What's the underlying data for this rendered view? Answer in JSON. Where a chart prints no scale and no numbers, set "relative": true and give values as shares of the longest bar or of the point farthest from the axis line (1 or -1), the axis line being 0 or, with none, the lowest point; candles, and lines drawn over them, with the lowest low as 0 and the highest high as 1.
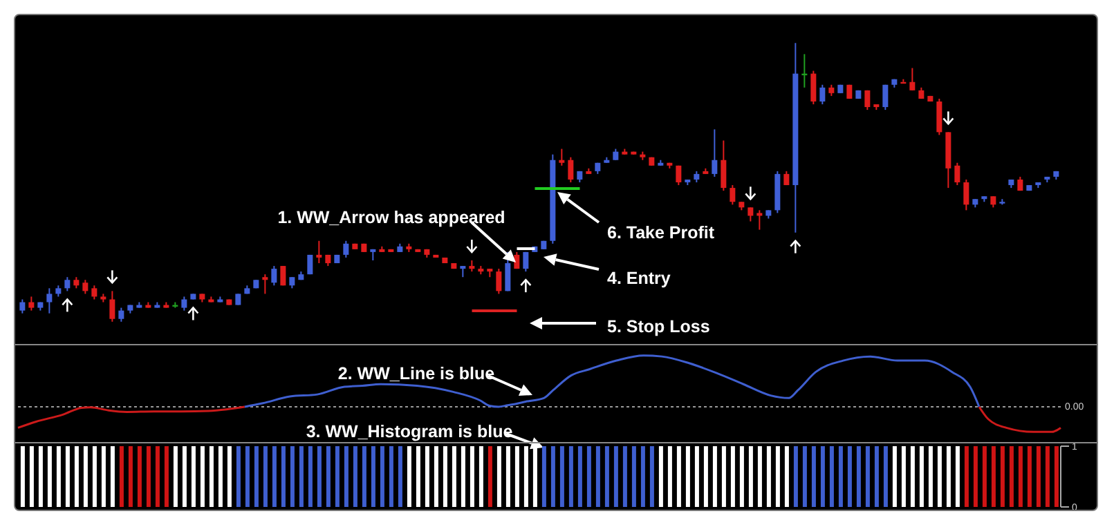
{
  "chart_data": [
    {
      "type": "candlestick",
      "relative": true,
      "categories": [
        null,
        null,
        null,
        null,
        null,
        null,
        null,
        null,
        null,
        null,
        null,
        null,
        null,
        null,
        null,
        null,
        null,
        null,
        null,
        null,
        null,
        null,
        null,
        null,
        null,
        null,
        null,
        null,
        null,
        null,
        null,
        null,
        null,
        null,
        null,
        null,
        null,
        null,
        null,
        null,
        null,
        null,
        null,
        null,
        null,
        null,
        null,
        null,
        null,
        null,
        null,
        null,
        null,
        null,
        null,
        null,
        null,
        null,
        null,
        null,
        null,
        null,
        null,
        null,
        null,
        null,
        null,
        null,
        null,
        null,
        null,
        null,
        null,
        null,
        null,
        null,
        null,
        null,
        null,
        null,
        null,
        null,
        null,
        null,
        null,
        null,
        null,
        null,
        null,
        null,
        null,
        null,
        null,
        null,
        null,
        null,
        null,
        null,
        null,
        null,
        null,
        null,
        null,
        null,
        null,
        null,
        null,
        null,
        null,
        null,
        null,
        null,
        null,
        null,
        null,
        null
      ],
      "ohlc": [
        [
          0.04,
          0.08,
          0.03,
          0.07
        ],
        [
          0.07,
          0.09,
          0.04,
          0.05
        ],
        [
          0.05,
          0.07,
          0.04,
          0.07
        ],
        [
          0.07,
          0.12,
          0.03,
          0.1
        ],
        [
          0.1,
          0.13,
          0.09,
          0.12
        ],
        [
          0.12,
          0.16,
          0.11,
          0.15
        ],
        [
          0.15,
          0.16,
          0.12,
          0.13
        ],
        [
          0.14,
          0.15,
          0.1,
          0.11
        ],
        [
          0.12,
          0.13,
          0.08,
          0.09
        ],
        [
          0.09,
          0.1,
          0.07,
          0.08
        ],
        [
          0.08,
          0.11,
          0,
          0.01
        ],
        [
          0.01,
          0.05,
          0,
          0.04
        ],
        [
          0.04,
          0.06,
          0.03,
          0.06
        ],
        [
          0.05,
          0.07,
          0.05,
          0.06
        ],
        [
          0.06,
          0.07,
          0.05,
          0.05
        ],
        [
          0.05,
          0.07,
          0.05,
          0.06
        ],
        [
          0.06,
          0.07,
          0.05,
          0.05
        ],
        [
          0.06,
          0.07,
          0.05,
          0.06
        ],
        [
          0.05,
          0.09,
          0.04,
          0.08
        ],
        [
          0.08,
          0.1,
          0.08,
          0.1
        ],
        [
          0.1,
          0.1,
          0.07,
          0.08
        ],
        [
          0.08,
          0.09,
          0.07,
          0.07
        ],
        [
          0.07,
          0.09,
          0.07,
          0.08
        ],
        [
          0.08,
          0.08,
          0.06,
          0.06
        ],
        [
          0.06,
          0.1,
          0.06,
          0.1
        ],
        [
          0.1,
          0.13,
          0.1,
          0.12
        ],
        [
          0.12,
          0.15,
          0.12,
          0.15
        ],
        [
          0.16,
          0.17,
          0.1,
          0.15
        ],
        [
          0.14,
          0.2,
          0.13,
          0.19
        ],
        [
          0.2,
          0.2,
          0.13,
          0.13
        ],
        [
          0.13,
          0.16,
          0.12,
          0.16
        ],
        [
          0.15,
          0.18,
          0.15,
          0.17
        ],
        [
          0.17,
          0.24,
          0.17,
          0.24
        ],
        [
          0.24,
          0.29,
          0.21,
          0.23
        ],
        [
          0.24,
          0.24,
          0.2,
          0.21
        ],
        [
          0.21,
          0.24,
          0.21,
          0.24
        ],
        [
          0.24,
          0.29,
          0.23,
          0.28
        ],
        [
          0.28,
          0.28,
          0.26,
          0.26
        ],
        [
          0.28,
          0.28,
          0.25,
          0.25
        ],
        [
          0.25,
          0.26,
          0.22,
          0.26
        ],
        [
          0.26,
          0.27,
          0.25,
          0.25
        ],
        [
          0.26,
          0.26,
          0.25,
          0.25
        ],
        [
          0.25,
          0.28,
          0.25,
          0.27
        ],
        [
          0.27,
          0.28,
          0.25,
          0.26
        ],
        [
          0.26,
          0.26,
          0.25,
          0.25
        ],
        [
          0.26,
          0.26,
          0.23,
          0.24
        ],
        [
          0.24,
          0.24,
          0.23,
          0.23
        ],
        [
          0.23,
          0.23,
          0.21,
          0.21
        ],
        [
          0.21,
          0.21,
          0.19,
          0.19
        ],
        [
          0.19,
          0.2,
          0.16,
          0.2
        ],
        [
          0.2,
          0.22,
          0.18,
          0.19
        ],
        [
          0.19,
          0.2,
          0.17,
          0.18
        ],
        [
          0.19,
          0.19,
          0.16,
          0.18
        ],
        [
          0.18,
          0.19,
          0.1,
          0.11
        ],
        [
          0.11,
          0.25,
          0.11,
          0.21
        ],
        [
          0.24,
          0.25,
          0.19,
          0.19
        ],
        [
          0.19,
          0.25,
          0.18,
          0.25
        ],
        [
          0.25,
          0.27,
          0.25,
          0.27
        ],
        [
          0.26,
          0.29,
          0.26,
          0.29
        ],
        [
          0.29,
          0.6,
          0.28,
          0.58
        ],
        [
          0.58,
          0.62,
          0.56,
          0.57
        ],
        [
          0.58,
          0.59,
          0.5,
          0.51
        ],
        [
          0.51,
          0.54,
          0.5,
          0.54
        ],
        [
          0.54,
          0.55,
          0.53,
          0.53
        ],
        [
          0.54,
          0.57,
          0.53,
          0.57
        ],
        [
          0.57,
          0.59,
          0.57,
          0.58
        ],
        [
          0.58,
          0.62,
          0.58,
          0.61
        ],
        [
          0.61,
          0.62,
          0.6,
          0.6
        ],
        [
          0.61,
          0.61,
          0.6,
          0.6
        ],
        [
          0.6,
          0.61,
          0.58,
          0.59
        ],
        [
          0.59,
          0.59,
          0.56,
          0.56
        ],
        [
          0.56,
          0.58,
          0.56,
          0.57
        ],
        [
          0.57,
          0.57,
          0.55,
          0.56
        ],
        [
          0.56,
          0.56,
          0.49,
          0.5
        ],
        [
          0.5,
          0.51,
          0.49,
          0.51
        ],
        [
          0.51,
          0.54,
          0.5,
          0.53
        ],
        [
          0.54,
          0.55,
          0.53,
          0.53
        ],
        [
          0.53,
          0.69,
          0.52,
          0.58
        ],
        [
          0.58,
          0.65,
          0.47,
          0.48
        ],
        [
          0.48,
          0.49,
          0.42,
          0.43
        ],
        [
          0.43,
          0.43,
          0.4,
          0.41
        ],
        [
          0.41,
          0.41,
          0.36,
          0.38
        ],
        [
          0.39,
          0.4,
          0.33,
          0.38
        ],
        [
          0.38,
          0.4,
          0.37,
          0.4
        ],
        [
          0.4,
          0.54,
          0.39,
          0.53
        ],
        [
          0.53,
          0.54,
          0.49,
          0.49
        ],
        [
          0.49,
          1,
          0.32,
          0.89
        ],
        [
          0.89,
          0.96,
          0.84,
          0.89
        ],
        [
          0.89,
          0.9,
          0.78,
          0.79
        ],
        [
          0.79,
          0.85,
          0.78,
          0.84
        ],
        [
          0.84,
          0.85,
          0.81,
          0.82
        ],
        [
          0.82,
          0.85,
          0.82,
          0.85
        ],
        [
          0.85,
          0.85,
          0.8,
          0.8
        ],
        [
          0.8,
          0.83,
          0.8,
          0.83
        ],
        [
          0.83,
          0.83,
          0.76,
          0.77
        ],
        [
          0.78,
          0.78,
          0.76,
          0.77
        ],
        [
          0.77,
          0.85,
          0.76,
          0.85
        ],
        [
          0.85,
          0.87,
          0.84,
          0.87
        ],
        [
          0.86,
          0.87,
          0.86,
          0.86
        ],
        [
          0.86,
          0.91,
          0.83,
          0.83
        ],
        [
          0.83,
          0.84,
          0.8,
          0.8
        ],
        [
          0.81,
          0.81,
          0.79,
          0.79
        ],
        [
          0.79,
          0.8,
          0.67,
          0.68
        ],
        [
          0.68,
          0.68,
          0.48,
          0.55
        ],
        [
          0.56,
          0.57,
          0.49,
          0.5
        ],
        [
          0.5,
          0.51,
          0.4,
          0.42
        ],
        [
          0.42,
          0.44,
          0.41,
          0.44
        ],
        [
          0.44,
          0.45,
          0.43,
          0.45
        ],
        [
          0.45,
          0.45,
          0.41,
          0.42
        ],
        [
          0.43,
          0.44,
          0.42,
          0.43
        ],
        [
          0.49,
          0.51,
          0.48,
          0.51
        ],
        [
          0.51,
          0.52,
          0.47,
          0.47
        ],
        [
          0.47,
          0.49,
          0.47,
          0.49
        ],
        [
          0.49,
          0.5,
          0.48,
          0.5
        ],
        [
          0.51,
          0.52,
          0.5,
          0.52
        ],
        [
          0.52,
          0.54,
          0.51,
          0.54
        ]
      ],
      "colors": [
        "#4060d8",
        "#e01c1c",
        "#4060d8",
        "#4060d8",
        "#4060d8",
        "#4060d8",
        "#e01c1c",
        "#e01c1c",
        "#e01c1c",
        "#e01c1c",
        "#e01c1c",
        "#4060d8",
        "#4060d8",
        "#4060d8",
        "#e01c1c",
        "#4060d8",
        "#e01c1c",
        "#20a020",
        "#4060d8",
        "#4060d8",
        "#e01c1c",
        "#e01c1c",
        "#4060d8",
        "#e01c1c",
        "#4060d8",
        "#4060d8",
        "#4060d8",
        "#e01c1c",
        "#4060d8",
        "#e01c1c",
        "#4060d8",
        "#4060d8",
        "#4060d8",
        "#e01c1c",
        "#e01c1c",
        "#4060d8",
        "#4060d8",
        "#e01c1c",
        "#e01c1c",
        "#4060d8",
        "#e01c1c",
        "#e01c1c",
        "#4060d8",
        "#e01c1c",
        "#e01c1c",
        "#e01c1c",
        "#e01c1c",
        "#e01c1c",
        "#e01c1c",
        "#4060d8",
        "#e01c1c",
        "#e01c1c",
        "#e01c1c",
        "#e01c1c",
        "#4060d8",
        "#e01c1c",
        "#4060d8",
        "#4060d8",
        "#4060d8",
        "#4060d8",
        "#e01c1c",
        "#e01c1c",
        "#4060d8",
        "#e01c1c",
        "#4060d8",
        "#4060d8",
        "#4060d8",
        "#e01c1c",
        "#e01c1c",
        "#e01c1c",
        "#e01c1c",
        "#4060d8",
        "#e01c1c",
        "#e01c1c",
        "#4060d8",
        "#4060d8",
        "#e01c1c",
        "#4060d8",
        "#e01c1c",
        "#e01c1c",
        "#e01c1c",
        "#e01c1c",
        "#e01c1c",
        "#4060d8",
        "#4060d8",
        "#e01c1c",
        "#4060d8",
        "#20a020",
        "#e01c1c",
        "#4060d8",
        "#e01c1c",
        "#4060d8",
        "#e01c1c",
        "#4060d8",
        "#e01c1c",
        "#e01c1c",
        "#4060d8",
        "#4060d8",
        "#e01c1c",
        "#e01c1c",
        "#e01c1c",
        "#e01c1c",
        "#e01c1c",
        "#e01c1c",
        "#e01c1c",
        "#e01c1c",
        "#4060d8",
        "#4060d8",
        "#e01c1c",
        "#4060d8",
        "#4060d8",
        "#e01c1c",
        "#4060d8",
        "#4060d8",
        "#4060d8",
        "#4060d8"
      ],
      "series": [
        {
          "type": "line",
          "color": "#22cc22",
          "values": [
            null,
            null,
            null,
            null,
            null,
            null,
            null,
            null,
            null,
            null,
            null,
            null,
            null,
            null,
            null,
            null,
            null,
            null,
            null,
            null,
            null,
            null,
            null,
            null,
            null,
            null,
            null,
            null,
            null,
            null,
            null,
            null,
            null,
            null,
            null,
            null,
            null,
            null,
            null,
            null,
            null,
            null,
            null,
            null,
            null,
            null,
            null,
            null,
            null,
            null,
            null,
            null,
            null,
            null,
            null,
            null,
            null,
            0.478,
            null,
            null,
            null,
            null,
            0.478,
            null,
            null,
            null,
            null,
            null,
            null,
            null,
            null,
            null,
            null,
            null,
            null,
            null,
            null,
            null,
            null,
            null,
            null,
            null,
            null,
            null,
            null,
            null,
            null,
            null,
            null,
            null,
            null,
            null,
            null,
            null,
            null,
            null,
            null,
            null,
            null,
            null,
            null,
            null,
            null,
            null,
            null,
            null,
            null,
            null,
            null,
            null,
            null,
            null,
            null,
            null,
            null,
            null
          ]
        },
        {
          "type": "line",
          "color": "#ffffff",
          "values": [
            null,
            null,
            null,
            null,
            null,
            null,
            null,
            null,
            null,
            null,
            null,
            null,
            null,
            null,
            null,
            null,
            null,
            null,
            null,
            null,
            null,
            null,
            null,
            null,
            null,
            null,
            null,
            null,
            null,
            null,
            null,
            null,
            null,
            null,
            null,
            null,
            null,
            null,
            null,
            null,
            null,
            null,
            null,
            null,
            null,
            null,
            null,
            null,
            null,
            null,
            null,
            null,
            null,
            null,
            null,
            0.262,
            null,
            0.262,
            null,
            null,
            null,
            null,
            null,
            null,
            null,
            null,
            null,
            null,
            null,
            null,
            null,
            null,
            null,
            null,
            null,
            null,
            null,
            null,
            null,
            null,
            null,
            null,
            null,
            null,
            null,
            null,
            null,
            null,
            null,
            null,
            null,
            null,
            null,
            null,
            null,
            null,
            null,
            null,
            null,
            null,
            null,
            null,
            null,
            null,
            null,
            null,
            null,
            null,
            null,
            null,
            null,
            null,
            null,
            null,
            null,
            null
          ]
        },
        {
          "type": "line",
          "color": "#dd2222",
          "values": [
            null,
            null,
            null,
            null,
            null,
            null,
            null,
            null,
            null,
            null,
            null,
            null,
            null,
            null,
            null,
            null,
            null,
            null,
            null,
            null,
            null,
            null,
            null,
            null,
            null,
            null,
            null,
            null,
            null,
            null,
            null,
            null,
            null,
            null,
            null,
            null,
            null,
            null,
            null,
            null,
            null,
            null,
            null,
            null,
            null,
            null,
            null,
            null,
            null,
            null,
            0.039,
            null,
            null,
            null,
            null,
            0.039,
            null,
            null,
            null,
            null,
            null,
            null,
            null,
            null,
            null,
            null,
            null,
            null,
            null,
            null,
            null,
            null,
            null,
            null,
            null,
            null,
            null,
            null,
            null,
            null,
            null,
            null,
            null,
            null,
            null,
            null,
            null,
            null,
            null,
            null,
            null,
            null,
            null,
            null,
            null,
            null,
            null,
            null,
            null,
            null,
            null,
            null,
            null,
            null,
            null,
            null,
            null,
            null,
            null,
            null,
            null,
            null,
            null,
            null,
            null,
            null
          ]
        }
      ],
      "annotations": [
        "1. WW_Arrow has appeared",
        "6. Take Profit",
        "4. Entry",
        "5. Stop Loss"
      ]
    },
    {
      "type": "line",
      "relative": true,
      "categories": [
        null,
        null,
        null,
        null,
        null,
        null,
        null,
        null,
        null,
        null,
        null,
        null,
        null,
        null,
        null,
        null,
        null,
        null,
        null,
        null,
        null,
        null,
        null,
        null,
        null,
        null,
        null,
        null,
        null,
        null,
        null,
        null,
        null,
        null,
        null,
        null,
        null,
        null,
        null,
        null,
        null,
        null,
        null,
        null,
        null,
        null,
        null,
        null,
        null,
        null,
        null,
        null,
        null,
        null,
        null,
        null,
        null,
        null,
        null,
        null,
        null,
        null,
        null,
        null,
        null,
        null,
        null,
        null,
        null,
        null,
        null,
        null,
        null,
        null,
        null,
        null,
        null,
        null,
        null,
        null,
        null,
        null,
        null,
        null,
        null,
        null,
        null,
        null,
        null,
        null,
        null,
        null,
        null,
        null,
        null,
        null,
        null,
        null,
        null,
        null,
        null,
        null,
        null,
        null,
        null,
        null,
        null,
        null,
        null,
        null,
        null,
        null,
        null,
        null,
        null,
        null
      ],
      "series": [
        {
          "color": "#cc1a1a",
          "values": [
            -0.41,
            null,
            -0.29,
            null,
            null,
            -0.15,
            null,
            -0.02,
            -0.01,
            null,
            -0.07,
            null,
            -0.1,
            null,
            null,
            -0.09,
            null,
            null,
            -0.09,
            null,
            null,
            -0.08,
            null,
            -0.05,
            null,
            0,
            null,
            null,
            null,
            null,
            null,
            null,
            null,
            null,
            null,
            null,
            null,
            null,
            null,
            null,
            null,
            null,
            null,
            null,
            null,
            null,
            null,
            null,
            null,
            null,
            null,
            null,
            null,
            null,
            null,
            null,
            null,
            null,
            null,
            null,
            null,
            null,
            null,
            null,
            null,
            null,
            null,
            null,
            null,
            null,
            null,
            null,
            null,
            null,
            null,
            null,
            null,
            null,
            null,
            null,
            null,
            null,
            null,
            null,
            null,
            null,
            null,
            null,
            null,
            null,
            null,
            null,
            null,
            null,
            null,
            null,
            null,
            null,
            null,
            null,
            null,
            null,
            null,
            null,
            null,
            null,
            null,
            null,
            null,
            null,
            null,
            null,
            null,
            null,
            null,
            null
          ]
        },
        {
          "color": "#3f5fd0",
          "values": [
            null,
            null,
            null,
            null,
            null,
            null,
            null,
            null,
            null,
            null,
            null,
            null,
            null,
            null,
            null,
            null,
            null,
            null,
            null,
            null,
            null,
            null,
            null,
            null,
            null,
            0,
            null,
            0.07,
            null,
            null,
            0.2,
            null,
            null,
            0.24,
            null,
            null,
            0.39,
            null,
            0.41,
            null,
            0.44,
            null,
            null,
            null,
            0.41,
            null,
            null,
            null,
            0.29,
            null,
            null,
            0.12,
            0.02,
            0,
            0.03,
            0.06,
            0.1,
            null,
            0.17,
            0.32,
            null,
            0.61,
            null,
            0.73,
            null,
            null,
            0.9,
            null,
            null,
            1,
            null,
            0.98,
            null,
            null,
            0.85,
            null,
            null,
            0.66,
            null,
            null,
            0.44,
            null,
            null,
            0.22,
            null,
            0.17,
            0.32,
            null,
            0.68,
            null,
            null,
            0.9,
            null,
            null,
            0.98,
            null,
            null,
            0.9,
            null,
            null,
            0.9,
            null,
            null,
            0.68,
            null,
            0.39,
            0,
            null,
            null,
            null,
            null,
            null,
            null,
            null,
            null,
            null
          ]
        },
        {
          "color": "#cc1a1a",
          "values": [
            null,
            null,
            null,
            null,
            null,
            null,
            null,
            null,
            null,
            null,
            null,
            null,
            null,
            null,
            null,
            null,
            null,
            null,
            null,
            null,
            null,
            null,
            null,
            null,
            null,
            null,
            null,
            null,
            null,
            null,
            null,
            null,
            null,
            null,
            null,
            null,
            null,
            null,
            null,
            null,
            null,
            null,
            null,
            null,
            null,
            null,
            null,
            null,
            null,
            null,
            null,
            null,
            null,
            null,
            null,
            null,
            null,
            null,
            null,
            null,
            null,
            null,
            null,
            null,
            null,
            null,
            null,
            null,
            null,
            null,
            null,
            null,
            null,
            null,
            null,
            null,
            null,
            null,
            null,
            null,
            null,
            null,
            null,
            null,
            null,
            null,
            null,
            null,
            null,
            null,
            null,
            null,
            null,
            null,
            null,
            null,
            null,
            null,
            null,
            null,
            null,
            null,
            null,
            null,
            null,
            null,
            0,
            -0.24,
            null,
            -0.41,
            null,
            null,
            -0.49,
            null,
            -0.49,
            -0.41
          ]
        }
      ],
      "ref_lines": [
        {
          "axis": "y",
          "value": 0,
          "label": "0.00",
          "color": "#9a9a9a",
          "line_style": "dotted"
        }
      ],
      "annotations": [
        "2. WW_Line is blue",
        "3. WW_Histogram is blue"
      ]
    },
    {
      "type": "bar",
      "categories": [
        null,
        null,
        null,
        null,
        null,
        null,
        null,
        null,
        null,
        null,
        null,
        null,
        null,
        null,
        null,
        null,
        null,
        null,
        null,
        null,
        null,
        null,
        null,
        null,
        null,
        null,
        null,
        null,
        null,
        null,
        null,
        null,
        null,
        null,
        null,
        null,
        null,
        null,
        null,
        null,
        null,
        null,
        null,
        null,
        null,
        null,
        null,
        null,
        null,
        null,
        null,
        null,
        null,
        null,
        null,
        null,
        null,
        null,
        null,
        null,
        null,
        null,
        null,
        null,
        null,
        null,
        null,
        null,
        null,
        null,
        null,
        null,
        null,
        null,
        null,
        null,
        null,
        null,
        null,
        null,
        null,
        null,
        null,
        null,
        null,
        null,
        null,
        null,
        null,
        null,
        null,
        null,
        null,
        null,
        null,
        null,
        null,
        null,
        null,
        null,
        null,
        null,
        null,
        null,
        null,
        null,
        null,
        null,
        null,
        null,
        null,
        null,
        null,
        null,
        null,
        null
      ],
      "values": [
        1,
        1,
        1,
        1,
        1,
        1,
        1,
        1,
        1,
        1,
        1,
        1,
        1,
        1,
        1,
        1,
        1,
        1,
        1,
        1,
        1,
        1,
        1,
        1,
        1,
        1,
        1,
        1,
        1,
        1,
        1,
        1,
        1,
        1,
        1,
        1,
        1,
        1,
        1,
        1,
        1,
        1,
        1,
        1,
        1,
        1,
        1,
        1,
        1,
        1,
        1,
        1,
        1,
        1,
        1,
        1,
        1,
        1,
        1,
        1,
        1,
        1,
        1,
        1,
        1,
        1,
        1,
        1,
        1,
        1,
        1,
        1,
        1,
        1,
        1,
        1,
        1,
        1,
        1,
        1,
        1,
        1,
        1,
        1,
        1,
        1,
        1,
        1,
        1,
        1,
        1,
        1,
        1,
        1,
        1,
        1,
        1,
        1,
        1,
        1,
        1,
        1,
        1,
        1,
        1,
        1,
        1,
        1,
        1,
        1,
        1,
        1,
        1,
        1,
        1,
        1
      ],
      "colors": [
        "#ffffff",
        "#ffffff",
        "#ffffff",
        "#ffffff",
        "#ffffff",
        "#ffffff",
        "#ffffff",
        "#ffffff",
        "#ffffff",
        "#ffffff",
        "#ffffff",
        "#d01414",
        "#d01414",
        "#d01414",
        "#d01414",
        "#d01414",
        "#d01414",
        "#ffffff",
        "#ffffff",
        "#ffffff",
        "#ffffff",
        "#ffffff",
        "#ffffff",
        "#ffffff",
        "#3f5fd0",
        "#3f5fd0",
        "#3f5fd0",
        "#3f5fd0",
        "#3f5fd0",
        "#3f5fd0",
        "#3f5fd0",
        "#3f5fd0",
        "#3f5fd0",
        "#3f5fd0",
        "#3f5fd0",
        "#3f5fd0",
        "#3f5fd0",
        "#3f5fd0",
        "#3f5fd0",
        "#3f5fd0",
        "#3f5fd0",
        "#3f5fd0",
        "#3f5fd0",
        "#ffffff",
        "#ffffff",
        "#ffffff",
        "#ffffff",
        "#ffffff",
        "#ffffff",
        "#ffffff",
        "#ffffff",
        "#ffffff",
        "#d01414",
        "#ffffff",
        "#ffffff",
        "#ffffff",
        "#ffffff",
        "#ffffff",
        "#3f5fd0",
        "#3f5fd0",
        "#3f5fd0",
        "#3f5fd0",
        "#3f5fd0",
        "#3f5fd0",
        "#3f5fd0",
        "#3f5fd0",
        "#3f5fd0",
        "#3f5fd0",
        "#3f5fd0",
        "#3f5fd0",
        "#3f5fd0",
        "#ffffff",
        "#ffffff",
        "#ffffff",
        "#ffffff",
        "#ffffff",
        "#ffffff",
        "#ffffff",
        "#ffffff",
        "#ffffff",
        "#ffffff",
        "#ffffff",
        "#ffffff",
        "#ffffff",
        "#ffffff",
        "#ffffff",
        "#3f5fd0",
        "#3f5fd0",
        "#3f5fd0",
        "#3f5fd0",
        "#3f5fd0",
        "#3f5fd0",
        "#3f5fd0",
        "#3f5fd0",
        "#3f5fd0",
        "#3f5fd0",
        "#3f5fd0",
        "#ffffff",
        "#ffffff",
        "#ffffff",
        "#ffffff",
        "#ffffff",
        "#ffffff",
        "#ffffff",
        "#ffffff",
        "#d01414",
        "#d01414",
        "#d01414",
        "#d01414",
        "#d01414",
        "#d01414",
        "#d01414",
        "#d01414",
        "#d01414",
        "#d01414",
        "#d01414"
      ],
      "ylim": [
        0,
        1
      ],
      "yticks": [
        0,
        1
      ]
    }
  ]
}
